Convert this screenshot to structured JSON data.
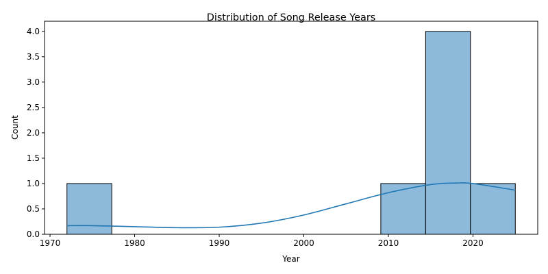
{
  "chart_data": {
    "type": "bar",
    "title": "Distribution of Song Release Years",
    "xlabel": "Year",
    "ylabel": "Count",
    "xlim": [
      1969.35,
      2027.65
    ],
    "ylim": [
      0,
      4.2
    ],
    "x_ticks": [
      1970,
      1980,
      1990,
      2000,
      2010,
      2020
    ],
    "x_tick_labels": [
      "1970",
      "1980",
      "1990",
      "2000",
      "2010",
      "2020"
    ],
    "y_ticks": [
      0,
      0.5,
      1,
      1.5,
      2,
      2.5,
      3,
      3.5,
      4
    ],
    "y_tick_labels": [
      "0.0",
      "0.5",
      "1.0",
      "1.5",
      "2.0",
      "2.5",
      "3.0",
      "3.5",
      "4.0"
    ],
    "bins": [
      {
        "start": 1972,
        "end": 1977.3,
        "count": 1
      },
      {
        "start": 1977.3,
        "end": 1982.6,
        "count": 0
      },
      {
        "start": 1982.6,
        "end": 1987.9,
        "count": 0
      },
      {
        "start": 1987.9,
        "end": 1993.2,
        "count": 0
      },
      {
        "start": 1993.2,
        "end": 1998.5,
        "count": 0
      },
      {
        "start": 1998.5,
        "end": 2003.8,
        "count": 0
      },
      {
        "start": 2003.8,
        "end": 2009.1,
        "count": 0
      },
      {
        "start": 2009.1,
        "end": 2014.4,
        "count": 1
      },
      {
        "start": 2014.4,
        "end": 2019.7,
        "count": 4
      },
      {
        "start": 2019.7,
        "end": 2025,
        "count": 1
      }
    ],
    "kde": {
      "x": [
        1972,
        1975,
        1980,
        1985,
        1990,
        1995,
        2000,
        2005,
        2010,
        2015,
        2018,
        2020,
        2025
      ],
      "y": [
        0.17,
        0.17,
        0.15,
        0.13,
        0.14,
        0.22,
        0.38,
        0.6,
        0.82,
        0.98,
        1.01,
        1.0,
        0.87
      ]
    },
    "colors": {
      "bar_fill": "#8db9db",
      "bar_edge": "#000000",
      "kde_line": "#1f77b4"
    },
    "grid": false,
    "legend": "none"
  }
}
